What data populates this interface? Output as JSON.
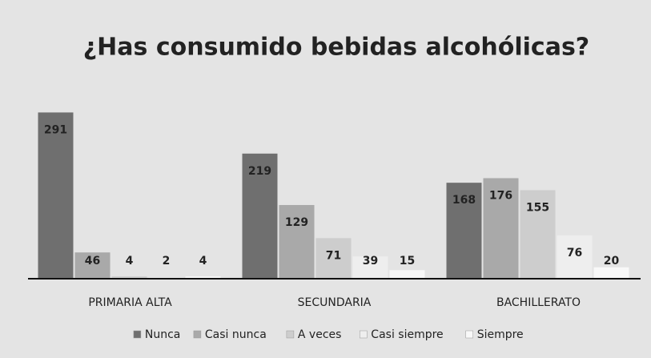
{
  "chart_data": {
    "type": "bar",
    "title": "¿Has consumido bebidas alcohólicas?",
    "categories": [
      "PRIMARIA ALTA",
      "SECUNDARIA",
      "BACHILLERATO"
    ],
    "series": [
      {
        "name": "Nunca",
        "color": "#6f6f6f",
        "values": [
          291,
          219,
          168
        ]
      },
      {
        "name": "Casi nunca",
        "color": "#a9a9a9",
        "values": [
          46,
          129,
          176
        ]
      },
      {
        "name": "A veces",
        "color": "#cdcdcd",
        "values": [
          4,
          71,
          155
        ]
      },
      {
        "name": "Casi siempre",
        "color": "#eeeeee",
        "values": [
          2,
          39,
          76
        ]
      },
      {
        "name": "Siempre",
        "color": "#f8f8f8",
        "values": [
          4,
          15,
          20
        ]
      }
    ],
    "ylim": [
      0,
      300
    ],
    "legend": "bottom"
  }
}
